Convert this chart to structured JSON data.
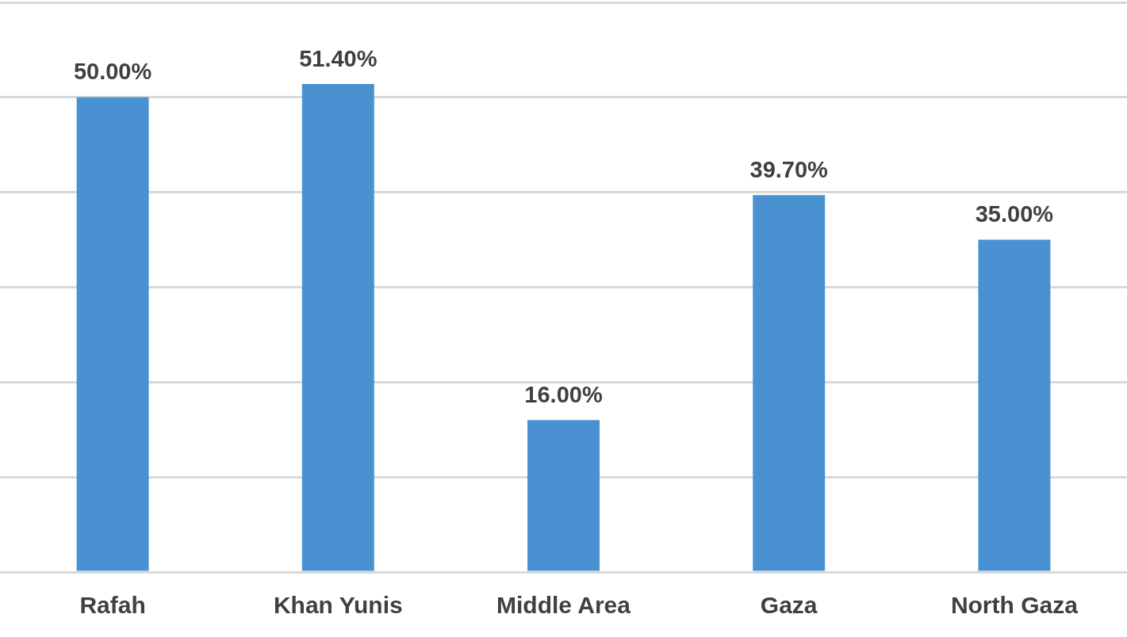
{
  "chart_data": {
    "type": "bar",
    "categories": [
      "Rafah",
      "Khan Yunis",
      "Middle Area",
      "Gaza",
      "North Gaza"
    ],
    "values": [
      50.0,
      51.4,
      16.0,
      39.7,
      35.0
    ],
    "value_labels": [
      "50.00%",
      "51.40%",
      "16.00%",
      "39.70%",
      "35.00%"
    ],
    "color": "#4a91d2",
    "ylim": [
      0,
      60
    ],
    "yticks": [
      {
        "value": 0,
        "label": null
      },
      {
        "value": 10,
        "label": null
      },
      {
        "value": 20,
        "label": null
      },
      {
        "value": 30,
        "label": null
      },
      {
        "value": 40,
        "label": null
      },
      {
        "value": 50,
        "label": null
      },
      {
        "value": 60,
        "label": null
      }
    ],
    "grid": "y",
    "tick_labels": "x",
    "legend": false
  }
}
